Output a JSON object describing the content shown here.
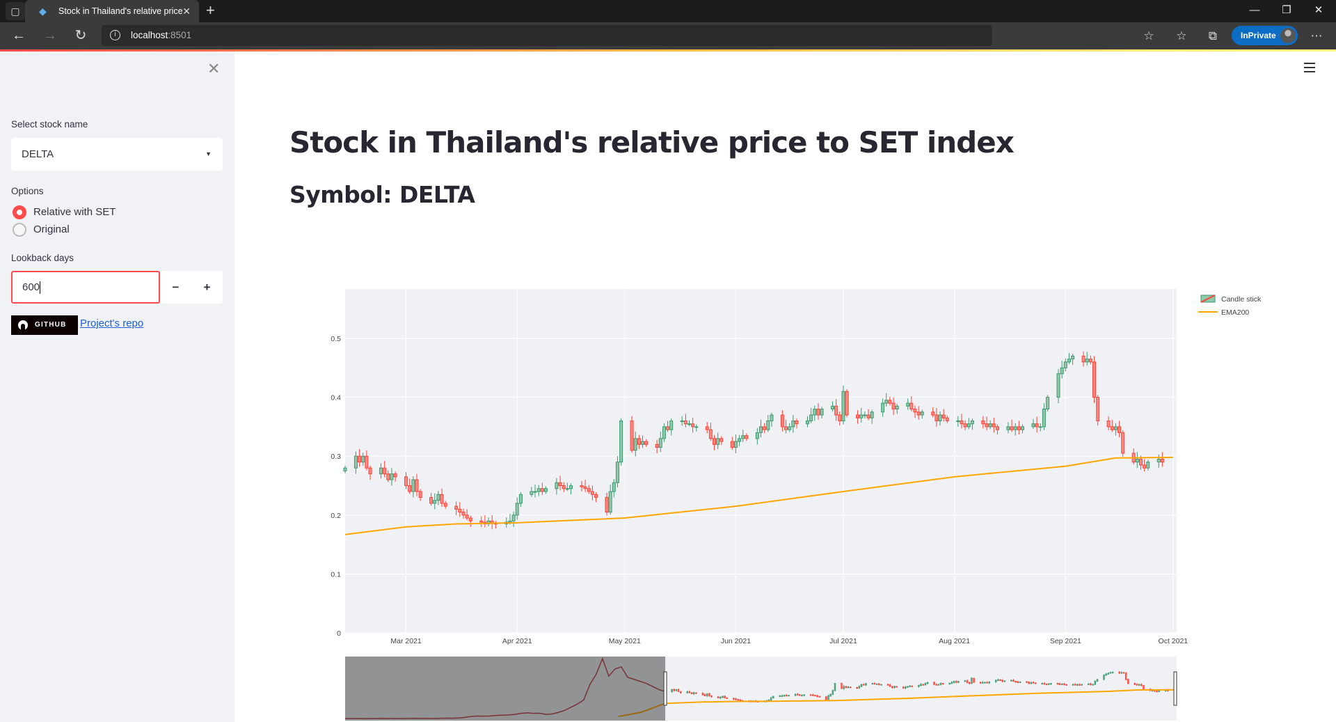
{
  "browser": {
    "tab_title": "Stock in Thailand's relative price to SET index",
    "tab_title_visible": "Stock in Thailand's relative price",
    "url_host": "localhost",
    "url_port": ":8501",
    "inprivate_label": "InPrivate"
  },
  "sidebar": {
    "select_label": "Select stock name",
    "select_value": "DELTA",
    "options_label": "Options",
    "radio_options": [
      {
        "label": "Relative with SET",
        "selected": true
      },
      {
        "label": "Original",
        "selected": false
      }
    ],
    "lookback_label": "Lookback days",
    "lookback_value": "600",
    "minus_label": "−",
    "plus_label": "+",
    "github_badge": "GITHUB",
    "repo_link": "Project's repo"
  },
  "main": {
    "title": "Stock in Thailand's relative price to SET index",
    "subtitle": "Symbol: DELTA"
  },
  "chart_data": {
    "type": "candlestick",
    "title": "",
    "xlabel": "",
    "ylabel": "",
    "start_date": "2021-02-12",
    "xlim": [
      "2021-02-12",
      "2021-10-02"
    ],
    "ylim": [
      0,
      0.584
    ],
    "yticks": [
      0,
      0.1,
      0.2,
      0.3,
      0.4,
      0.5
    ],
    "ytick_labels": [
      "0",
      "0.1",
      "0.2",
      "0.3",
      "0.4",
      "0.5"
    ],
    "xticks": [
      {
        "date": "2021-03-01",
        "label": "Mar 2021"
      },
      {
        "date": "2021-04-01",
        "label": "Apr 2021"
      },
      {
        "date": "2021-05-01",
        "label": "May 2021"
      },
      {
        "date": "2021-06-01",
        "label": "Jun 2021"
      },
      {
        "date": "2021-07-01",
        "label": "Jul 2021"
      },
      {
        "date": "2021-08-01",
        "label": "Aug 2021"
      },
      {
        "date": "2021-09-01",
        "label": "Sep 2021"
      },
      {
        "date": "2021-10-01",
        "label": "Oct 2021"
      }
    ],
    "grid": true,
    "legend_position": "top-right",
    "colors": {
      "up": "#3d9970",
      "down": "#ff4136",
      "ema": "#ffa500",
      "plot_bg": "#eff1f5"
    },
    "series": [
      {
        "name": "Candle stick",
        "type": "candlestick",
        "first_open": 0.275,
        "closes": [
          0.28,
          0.3,
          0.29,
          0.3,
          0.28,
          0.27,
          0.28,
          0.27,
          0.26,
          0.27,
          0.265,
          0.25,
          0.24,
          0.26,
          0.24,
          0.23,
          0.22,
          0.225,
          0.235,
          0.22,
          0.215,
          0.21,
          0.205,
          0.2,
          0.195,
          0.19,
          0.188,
          0.185,
          0.19,
          0.186,
          0.185,
          0.188,
          0.19,
          0.2,
          0.22,
          0.235,
          0.24,
          0.24,
          0.245,
          0.24,
          0.245,
          0.255,
          0.25,
          0.245,
          0.245,
          0.25,
          0.248,
          0.245,
          0.24,
          0.235,
          0.23,
          0.205,
          0.24,
          0.255,
          0.29,
          0.36,
          0.31,
          0.33,
          0.32,
          0.325,
          0.32,
          0.315,
          0.33,
          0.35,
          0.345,
          0.36,
          0.36,
          0.355,
          0.355,
          0.35,
          0.35,
          0.345,
          0.33,
          0.32,
          0.33,
          0.325,
          0.315,
          0.325,
          0.33,
          0.335,
          0.33,
          0.34,
          0.35,
          0.345,
          0.36,
          0.37,
          0.35,
          0.345,
          0.35,
          0.36,
          0.355,
          0.36,
          0.37,
          0.38,
          0.37,
          0.38,
          0.385,
          0.37,
          0.36,
          0.41,
          0.37,
          0.365,
          0.37,
          0.37,
          0.365,
          0.375,
          0.39,
          0.395,
          0.39,
          0.38,
          0.385,
          0.39,
          0.38,
          0.375,
          0.37,
          0.375,
          0.37,
          0.36,
          0.37,
          0.365,
          0.36,
          0.36,
          0.355,
          0.35,
          0.355,
          0.36,
          0.355,
          0.35,
          0.355,
          0.35,
          0.345,
          0.35,
          0.345,
          0.35,
          0.345,
          0.35,
          0.355,
          0.35,
          0.35,
          0.38,
          0.4,
          0.44,
          0.45,
          0.46,
          0.465,
          0.47,
          0.46,
          0.465,
          0.46,
          0.4,
          0.36,
          0.35,
          0.345,
          0.35,
          0.34,
          0.305,
          0.29,
          0.295,
          0.285,
          0.28,
          0.29,
          0.295,
          0.29
        ]
      },
      {
        "name": "EMA200",
        "type": "line",
        "points": [
          [
            "2021-02-12",
            0.167
          ],
          [
            "2021-03-01",
            0.18
          ],
          [
            "2021-03-15",
            0.185
          ],
          [
            "2021-04-01",
            0.187
          ],
          [
            "2021-05-01",
            0.195
          ],
          [
            "2021-06-01",
            0.215
          ],
          [
            "2021-07-01",
            0.24
          ],
          [
            "2021-08-01",
            0.265
          ],
          [
            "2021-09-01",
            0.283
          ],
          [
            "2021-09-15",
            0.297
          ],
          [
            "2021-10-01",
            0.298
          ]
        ]
      }
    ],
    "rangeslider": {
      "ylim": [
        0,
        0.62
      ],
      "history_start": "2020-02-10",
      "history_closes": [
        0.02,
        0.02,
        0.021,
        0.019,
        0.02,
        0.02,
        0.022,
        0.021,
        0.02,
        0.02,
        0.021,
        0.023,
        0.022,
        0.022,
        0.021,
        0.022,
        0.024,
        0.023,
        0.025,
        0.03,
        0.04,
        0.045,
        0.043,
        0.045,
        0.05,
        0.052,
        0.055,
        0.06,
        0.07,
        0.075,
        0.07,
        0.072,
        0.06,
        0.065,
        0.08,
        0.1,
        0.13,
        0.16,
        0.2,
        0.35,
        0.45,
        0.6,
        0.43,
        0.5,
        0.52,
        0.42,
        0.4,
        0.38,
        0.36,
        0.33,
        0.3,
        0.28
      ],
      "history_ema": [
        [
          "2020-12-20",
          0.04
        ],
        [
          "2021-01-15",
          0.08
        ],
        [
          "2021-02-12",
          0.167
        ]
      ],
      "selected_range": [
        "2021-02-12",
        "2021-10-01"
      ]
    }
  }
}
